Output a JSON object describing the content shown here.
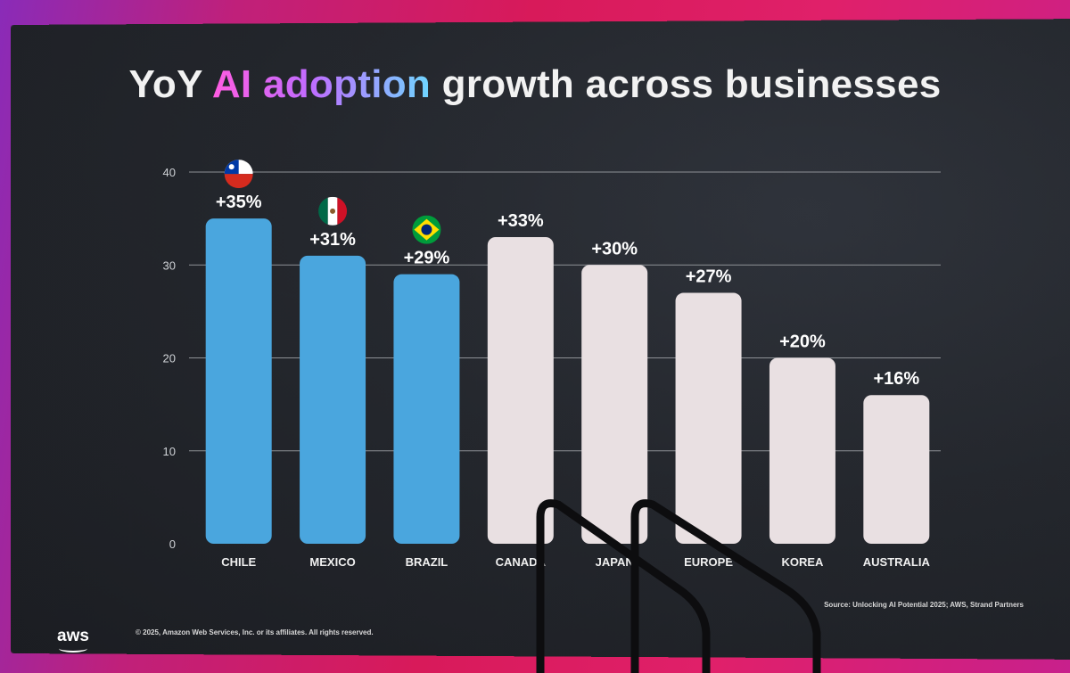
{
  "slide": {
    "title_prefix": "YoY",
    "title_highlight": "AI adoption",
    "title_suffix": "growth across businesses",
    "source": "Source: Unlocking AI Potential 2025; AWS, Strand Partners",
    "copyright": "© 2025, Amazon Web Services, Inc. or its affiliates. All rights reserved.",
    "logo_text": "aws"
  },
  "chart_data": {
    "type": "bar",
    "title": "YoY AI adoption growth across businesses",
    "xlabel": "",
    "ylabel": "",
    "ylim": [
      0,
      40
    ],
    "yticks": [
      0,
      10,
      20,
      30,
      40
    ],
    "grid": true,
    "categories": [
      "CHILE",
      "MEXICO",
      "BRAZIL",
      "CANADA",
      "JAPAN",
      "EUROPE",
      "KOREA",
      "AUSTRALIA"
    ],
    "values": [
      35,
      31,
      29,
      33,
      30,
      27,
      20,
      16
    ],
    "data_labels": [
      "+35%",
      "+31%",
      "+29%",
      "+33%",
      "+30%",
      "+27%",
      "+20%",
      "+16%"
    ],
    "highlighted": [
      true,
      true,
      true,
      false,
      false,
      false,
      false,
      false
    ],
    "flags": [
      "chile",
      "mexico",
      "brazil",
      "",
      "",
      "",
      "",
      ""
    ],
    "colors": {
      "highlight": "#4aa6de",
      "muted": "#e9e0e2",
      "grid": "#8e9196",
      "background": "#24272d"
    }
  }
}
